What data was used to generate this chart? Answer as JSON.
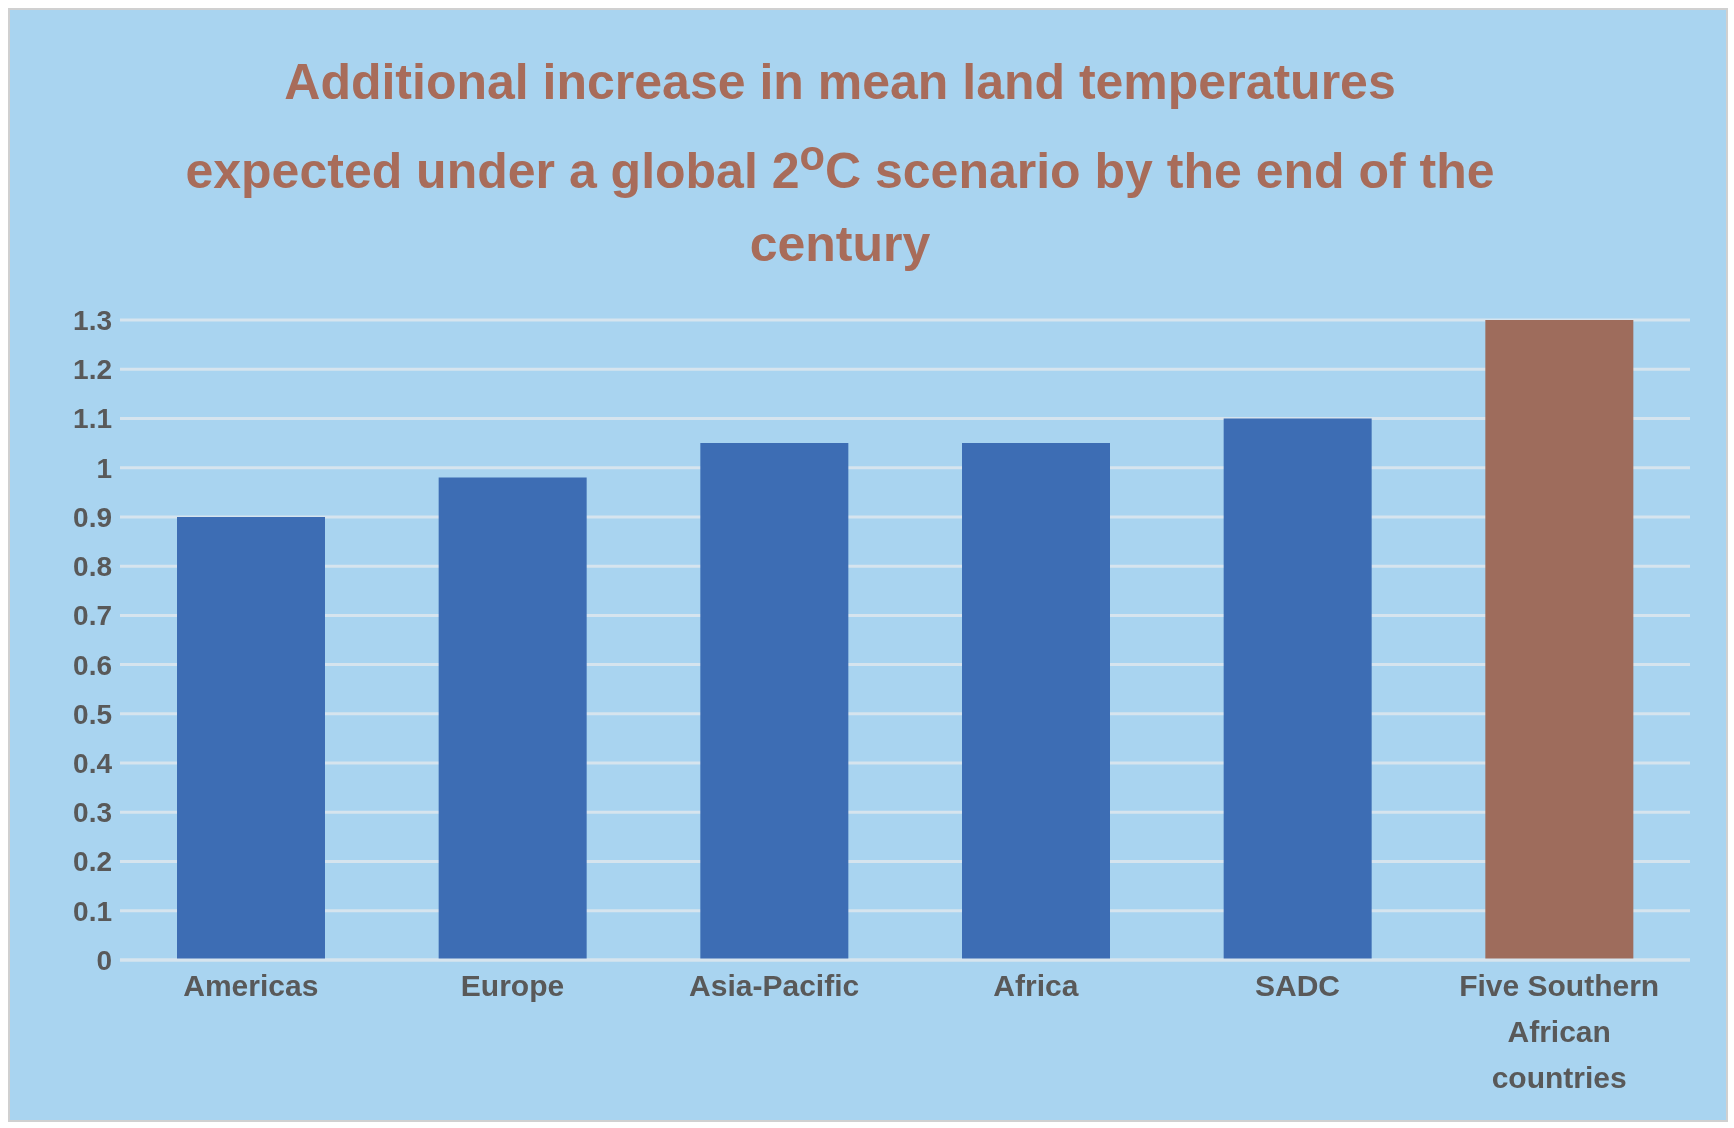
{
  "chart_data": {
    "type": "bar",
    "title": "Additional increase in mean land temperatures expected under a global 2$^{o}$C scenario by the end of the century",
    "categories": [
      "Americas",
      "Europe",
      "Asia-Pacific",
      "Africa",
      "SADC",
      "Five Southern African countries"
    ],
    "values": [
      0.9,
      0.98,
      1.05,
      1.05,
      1.1,
      1.3
    ],
    "colors": [
      "#3d6db4",
      "#3d6db4",
      "#3d6db4",
      "#3d6db4",
      "#3d6db4",
      "#9e6c5c"
    ],
    "ylim": [
      0,
      1.3
    ],
    "yticks": [
      0,
      0.1,
      0.2,
      0.3,
      0.4,
      0.5,
      0.6,
      0.7,
      0.8,
      0.9,
      1,
      1.1,
      1.2,
      1.3
    ],
    "grid": "y"
  }
}
